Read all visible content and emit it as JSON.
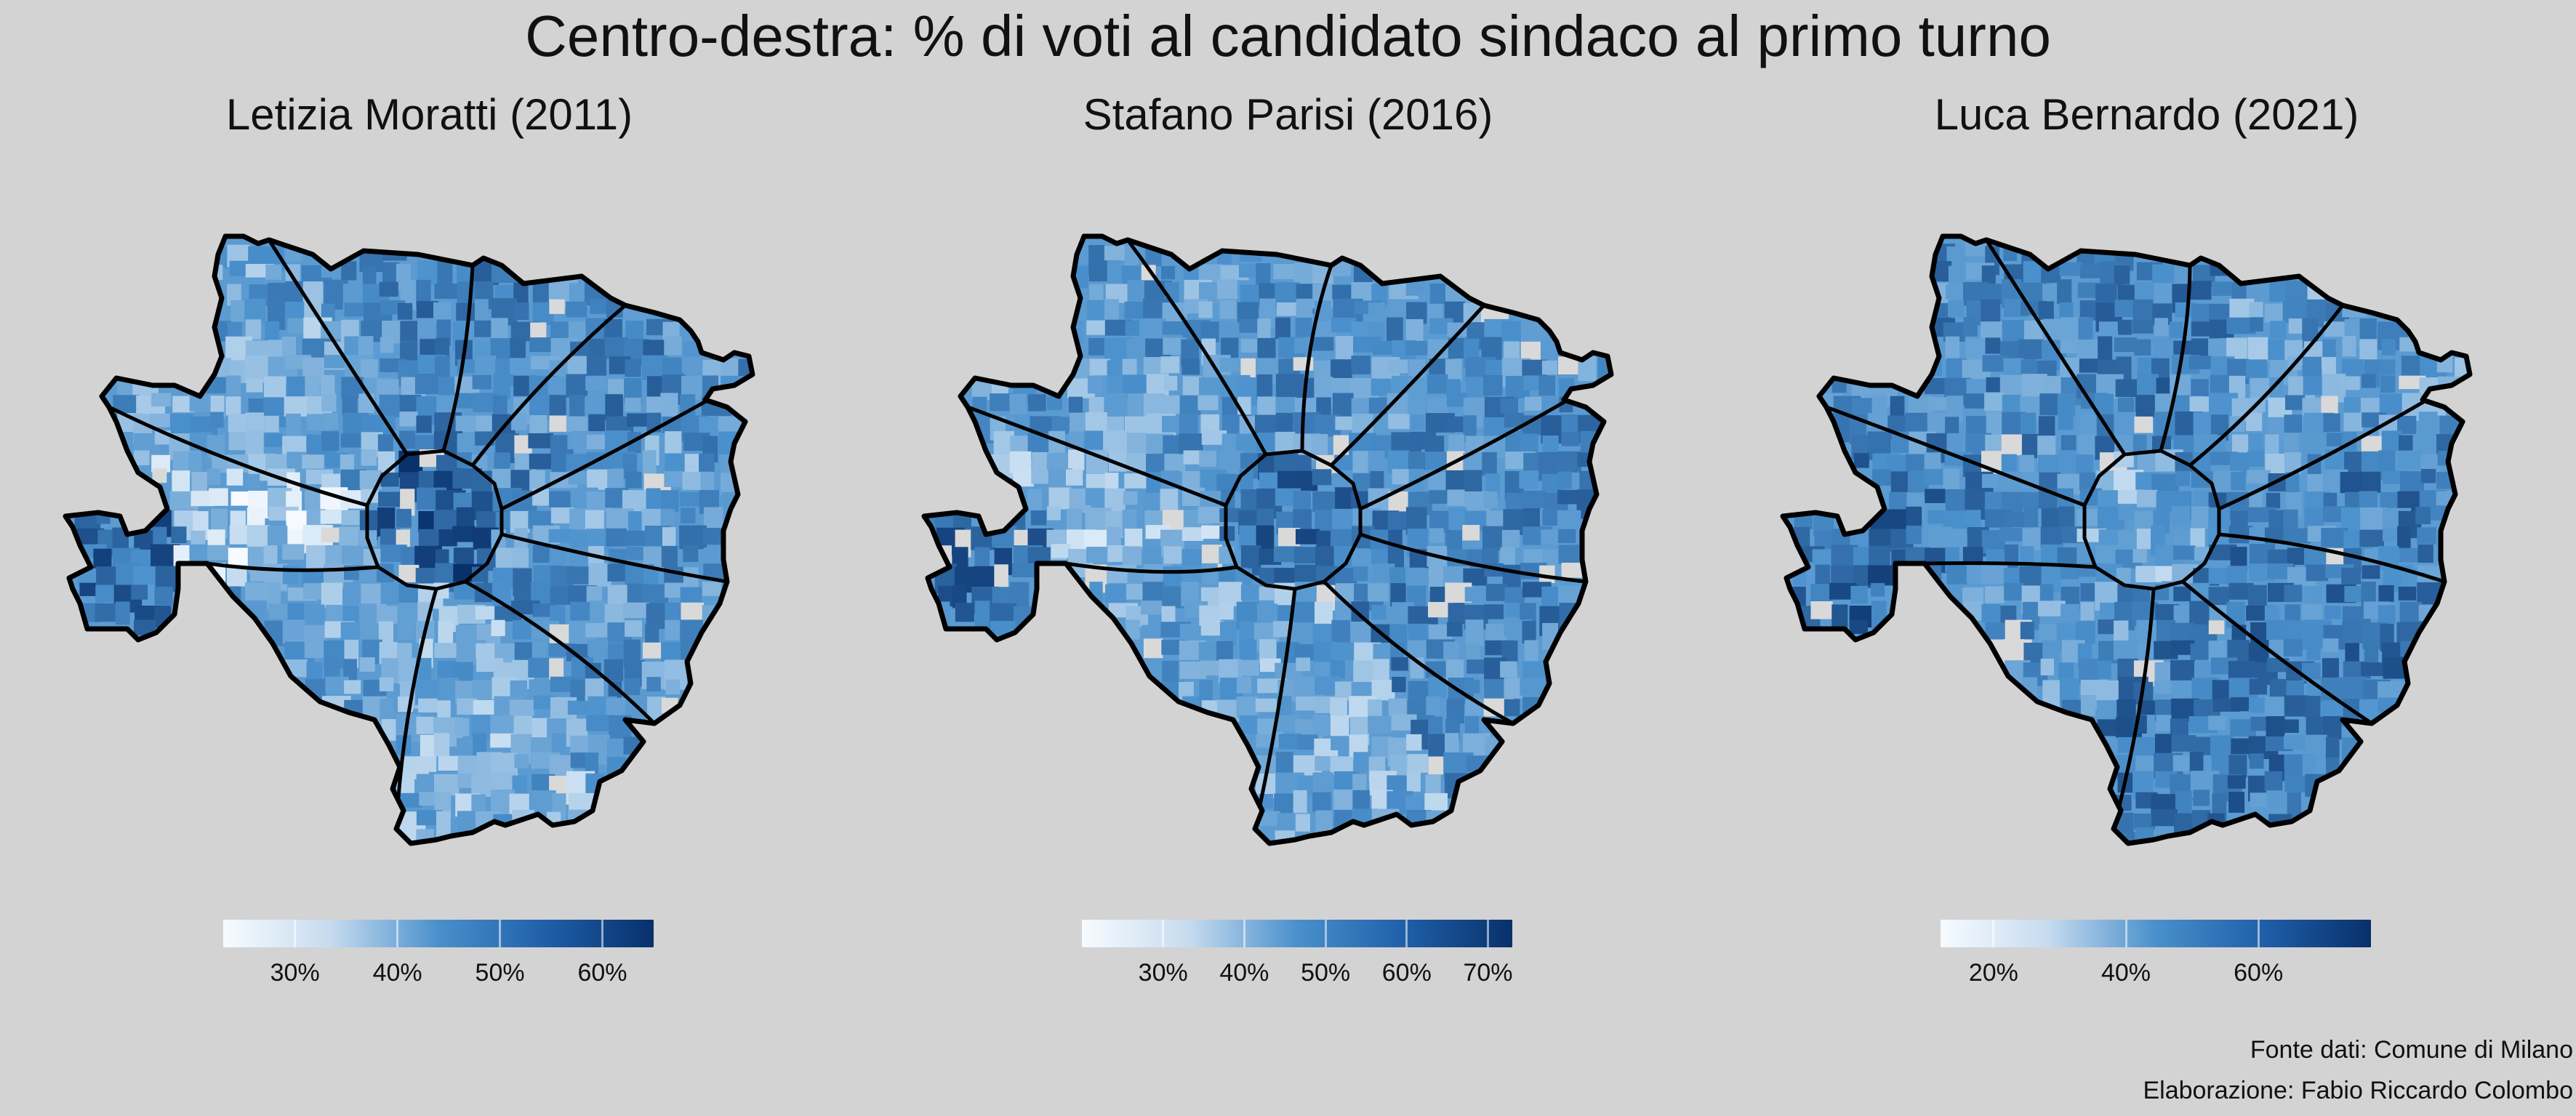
{
  "title": "Centro-destra: % di voti al candidato sindaco al primo turno",
  "panels": [
    {
      "title": "Letizia Moratti (2011)",
      "legend": {
        "min": 23,
        "max": 65,
        "ticks": [
          {
            "v": 30,
            "label": "30%"
          },
          {
            "v": 40,
            "label": "40%"
          },
          {
            "v": 50,
            "label": "50%"
          },
          {
            "v": 60,
            "label": "60%"
          }
        ]
      },
      "zone_fill": {
        "center": 0.78,
        "north": 0.55,
        "northeast": 0.55,
        "east": 0.45,
        "southeast": 0.5,
        "south": 0.35,
        "southwest": 0.42,
        "west": 0.22,
        "northwest": 0.4,
        "far_west": 0.7
      }
    },
    {
      "title": "Stafano Parisi (2016)",
      "legend": {
        "min": 20,
        "max": 73,
        "ticks": [
          {
            "v": 30,
            "label": "30%"
          },
          {
            "v": 40,
            "label": "40%"
          },
          {
            "v": 50,
            "label": "50%"
          },
          {
            "v": 60,
            "label": "60%"
          },
          {
            "v": 70,
            "label": "70%"
          }
        ]
      },
      "zone_fill": {
        "center": 0.68,
        "north": 0.5,
        "northeast": 0.5,
        "east": 0.55,
        "southeast": 0.55,
        "south": 0.38,
        "southwest": 0.42,
        "west": 0.3,
        "northwest": 0.45,
        "far_west": 0.68
      }
    },
    {
      "title": "Luca Bernardo (2021)",
      "legend": {
        "min": 12,
        "max": 77,
        "ticks": [
          {
            "v": 20,
            "label": "20%"
          },
          {
            "v": 40,
            "label": "40%"
          },
          {
            "v": 60,
            "label": "60%"
          }
        ]
      },
      "zone_fill": {
        "center": 0.35,
        "north": 0.6,
        "northeast": 0.45,
        "east": 0.6,
        "southeast": 0.62,
        "south": 0.62,
        "southwest": 0.5,
        "west": 0.62,
        "northwest": 0.55,
        "far_west": 0.7
      }
    }
  ],
  "colors": {
    "background": "#d3d3d3",
    "scale_low": "#f7fbff",
    "scale_mid": "#4a90cc",
    "scale_high": "#08306b",
    "missing": "#d9d9d9",
    "border": "#000000"
  },
  "source_line1": "Fonte dati: Comune di Milano",
  "source_line2": "Elaborazione: Fabio Riccardo Colombo"
}
